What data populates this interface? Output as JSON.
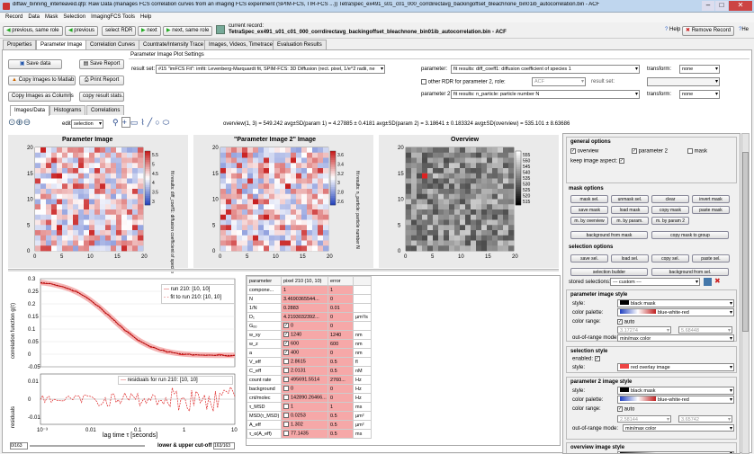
{
  "window": {
    "title": "diffaw_binning_interleaved.qfp: Raw Data (manages FCS correlation curves from an imaging FCS experiment (SPIM-FCS, TIR-FCS ...)) TetraSpec_ex491_s01_c01_000_corrdirectavg_backingoffset_bleachnone_bin01ib_autocorrelation.bin - ACF",
    "min": "–",
    "max": "□",
    "close": "✕"
  },
  "menu": [
    "Record",
    "Data",
    "Mask",
    "Selection",
    "ImagingFCS Tools",
    "Help"
  ],
  "toolbar": {
    "prev_same": "previous, same role",
    "prev": "previous",
    "select": "select RDR",
    "next": "next",
    "next_same": "next, same role",
    "current_label": "current record:",
    "current_value": "TetraSpec_ex491_s01_c01_000_corrdirectavg_backingoffset_bleachnone_bin01ib_autocorrelation.bin - ACF",
    "help": "Help",
    "remove": "Remove Record",
    "help2": "He"
  },
  "tabs": [
    "Properties",
    "Parameter Image",
    "Correlation Curves",
    "Countrate/Intensity Trace",
    "Images, Videos, Timetrace",
    "Evaluation Results"
  ],
  "settings": {
    "group": "Parameter Image Plot Settings",
    "save_data": "Save data",
    "save_report": "Save Report",
    "copy_matlab": "Copy Images to Matlab",
    "print_report": "Print Report",
    "copy_columns": "Copy Images as Columns",
    "copy_stats": "copy result stats.",
    "result_set_label": "result set:",
    "result_set": "#15 \"imFCS Fit\": imfit: Levenberg-Marquardt fit, SPIM-FCS: 3D Diffusion (rect. pixel, 1/e^2 radii, ne",
    "param_label": "parameter:",
    "param_value": "fit results: diff_coeff1: diffusion coefficient of species 1",
    "transform_label": "transform:",
    "transform_value": "none",
    "other_rdr": "other RDR for parameter 2, role:",
    "role_value": "ACF",
    "result_set2": "result set:",
    "param2_label": "parameter 2:",
    "param2_value": "fit results: n_particle: particle number N",
    "transform2_value": "none"
  },
  "subtabs": [
    "Images/Data",
    "Histograms",
    "Correlations"
  ],
  "tools": {
    "edit_label": "edit",
    "edit_value": "selection",
    "stats": "overview(1, 3) = 549.242  avg±SD(param 1) = 4.27885 ± 0.4181  avg±SD(param 2) = 3.18641 ± 0.183324  avg±SD(overview) = 535.101 ± 8.63686"
  },
  "images": {
    "p1_title": "Parameter Image",
    "p1_cb": "fit results: diff_coeff1: diffusion coefficient of species 1",
    "p1_ticks": [
      "5.5",
      "5",
      "4.5",
      "4",
      "3.5",
      "3"
    ],
    "p2_title": "\"Parameter Image 2\" Image",
    "p2_cb": "fit results: n_particle: particle number N",
    "p2_ticks": [
      "3.6",
      "3.4",
      "3.2",
      "3",
      "2.8",
      "2.6"
    ],
    "ov_title": "Overview",
    "ov_ticks": [
      "555",
      "550",
      "545",
      "540",
      "535",
      "530",
      "525",
      "520",
      "515"
    ],
    "axis_ticks": [
      "0",
      "5",
      "10",
      "15",
      "20"
    ]
  },
  "curve": {
    "ylabel": "correlation function g(τ)",
    "yticks": [
      "0.3",
      "0.25",
      "0.2",
      "0.15",
      "0.1",
      "0.05",
      "0",
      "-0.05"
    ],
    "legend1": "run 210: [10, 10]",
    "legend2": "fit to run 210: [10, 10]",
    "res_label": "residuals",
    "res_legend": "residuals for run 210: [10, 10]",
    "res_ticks": [
      "0.01",
      "0",
      "-0.01"
    ],
    "xticks": [
      "10⁻³",
      "0.01",
      "0.1",
      "1",
      "10"
    ],
    "xlabel": "lag time τ [seconds]",
    "cutoff": "lower & upper cut-off",
    "left_count": "0/163",
    "right_count": "163/163"
  },
  "table": {
    "header": [
      "parameter",
      "pixel 210 (10, 10)",
      "error",
      ""
    ],
    "rows": [
      [
        "compone...",
        "1",
        "1",
        ""
      ],
      [
        "N",
        "3.4690365544...",
        "0",
        ""
      ],
      [
        "1/N",
        "0.2883",
        "0.01",
        ""
      ],
      [
        "D₁",
        "4.2193032392...",
        "0",
        "µm²/s"
      ],
      [
        "Gₒₒ",
        "0",
        "0",
        ""
      ],
      [
        "w_xy",
        "1240",
        "1240",
        "nm"
      ],
      [
        "w_z",
        "600",
        "600",
        "nm"
      ],
      [
        "a",
        "400",
        "0",
        "nm"
      ],
      [
        "V_eff",
        "2.8615",
        "0.5",
        "fl"
      ],
      [
        "C_eff",
        "2.0131",
        "0.5",
        "nM"
      ],
      [
        "count rate",
        "495691.5514",
        "2760...",
        "Hz"
      ],
      [
        "background",
        "0",
        "0",
        "Hz"
      ],
      [
        "cnt/molec",
        "142890.26466...",
        "0",
        "Hz"
      ],
      [
        "τ_MSD",
        "1",
        "1",
        "ms"
      ],
      [
        "MSD(τ_MSD)",
        "0.0253",
        "0.5",
        "µm²"
      ],
      [
        "A_eff",
        "1.302",
        "0.5",
        "µm²"
      ],
      [
        "τ_α(A_eff)",
        "77.1435",
        "0.5",
        "ms"
      ]
    ]
  },
  "right": {
    "general": "general options",
    "overview": "overview",
    "param2": "parameter 2",
    "mask": "mask",
    "keep_aspect": "keep image aspect:",
    "mask_opts": "mask options",
    "mask_btns": [
      "mask sel.",
      "unmask sel.",
      "clear",
      "invert mask",
      "save mask",
      "load mask",
      "copy mask",
      "paste mask",
      "m. by overview",
      "m. by param.",
      "m. by param 2"
    ],
    "bg_mask": "background from mask",
    "copy_group": "copy mask to group",
    "sel_opts": "selection options",
    "sel_btns": [
      "save sel.",
      "load sel.",
      "copy sel.",
      "paste sel."
    ],
    "sel_builder": "selection builder",
    "bg_sel": "background from sel.",
    "stored": "stored selections:",
    "stored_value": "--- custom ---",
    "pis": "parameter image style",
    "style_label": "style:",
    "style_value": "black mask",
    "palette_label": "color palette:",
    "palette_value": "blue-white-red",
    "range_label": "color range:",
    "auto": "auto",
    "range_min": "3.17274",
    "range_max": "5.68448",
    "oor_label": "out-of-range mode:",
    "oor_value": "min/max color",
    "sel_style": "selection style",
    "enabled": "enabled:",
    "sel_style_value": "red overlay image",
    "p2_style": "parameter 2 image style",
    "p2_style_value": "black mask",
    "p2_palette": "blue-white-red",
    "p2_min": "2.58144",
    "p2_max": "3.65742",
    "p2_oor": "min/max color",
    "ov_style": "overview image style",
    "ov_palette": "gray"
  }
}
